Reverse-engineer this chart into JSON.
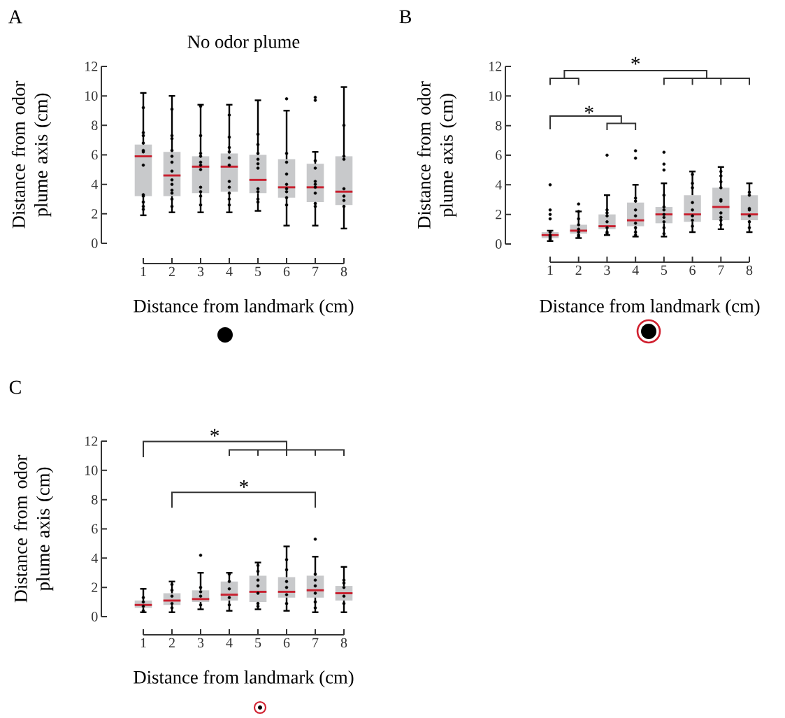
{
  "chart_data": [
    {
      "type": "box",
      "title": "No odor plume",
      "xlabel": "Distance from landmark (cm)",
      "ylabel": "Distance from odor plume axis (cm)",
      "categories": [
        "1",
        "2",
        "3",
        "4",
        "5",
        "6",
        "7",
        "8"
      ],
      "ylim": [
        0,
        12
      ],
      "yticks": [
        0,
        2,
        4,
        6,
        8,
        10,
        12
      ],
      "annotations": [
        "A"
      ],
      "series": [
        {
          "type": "box",
          "color": "#c8c9cb",
          "boxes": [
            {
              "low": 1.9,
              "q1": 3.2,
              "median": 5.9,
              "q3": 6.7,
              "high": 10.2
            },
            {
              "low": 2.1,
              "q1": 3.2,
              "median": 4.6,
              "q3": 6.2,
              "high": 10.0
            },
            {
              "low": 2.1,
              "q1": 3.4,
              "median": 5.2,
              "q3": 5.9,
              "high": 9.4
            },
            {
              "low": 2.1,
              "q1": 3.5,
              "median": 5.2,
              "q3": 6.1,
              "high": 9.4
            },
            {
              "low": 2.2,
              "q1": 3.4,
              "median": 4.3,
              "q3": 6.0,
              "high": 9.7
            },
            {
              "low": 1.2,
              "q1": 3.1,
              "median": 3.8,
              "q3": 5.7,
              "high": 9.0,
              "outliers": [
                9.8
              ]
            },
            {
              "low": 1.2,
              "q1": 2.8,
              "median": 3.8,
              "q3": 5.4,
              "high": 6.2,
              "outliers": [
                9.9,
                9.7
              ]
            },
            {
              "low": 1.0,
              "q1": 2.6,
              "median": 3.5,
              "q3": 5.9,
              "high": 10.6
            }
          ]
        },
        {
          "type": "scatter",
          "color": "#000000",
          "x": [
            "1",
            "1",
            "1",
            "1",
            "1",
            "1",
            "1",
            "1",
            "1",
            "1",
            "1",
            "1",
            "2",
            "2",
            "2",
            "2",
            "2",
            "2",
            "2",
            "2",
            "2",
            "2",
            "2",
            "2",
            "2",
            "3",
            "3",
            "3",
            "3",
            "3",
            "3",
            "3",
            "3",
            "3",
            "3",
            "3",
            "4",
            "4",
            "4",
            "4",
            "4",
            "4",
            "4",
            "4",
            "4",
            "4",
            "4",
            "5",
            "5",
            "5",
            "5",
            "5",
            "5",
            "5",
            "5",
            "5",
            "5",
            "6",
            "6",
            "6",
            "6",
            "6",
            "6",
            "6",
            "6",
            "7",
            "7",
            "7",
            "7",
            "7",
            "7",
            "7",
            "7",
            "8",
            "8",
            "8",
            "8",
            "8",
            "8",
            "8"
          ],
          "values": [
            9.2,
            7.5,
            7.3,
            6.8,
            6.3,
            6.2,
            5.3,
            3.3,
            3.2,
            2.8,
            2.5,
            2.3,
            9.1,
            7.3,
            7.1,
            6.3,
            5.9,
            5.5,
            4.9,
            4.3,
            4.0,
            3.6,
            3.4,
            3.0,
            2.5,
            9.3,
            7.3,
            6.1,
            5.9,
            5.5,
            5.3,
            5.0,
            3.8,
            3.5,
            3.2,
            2.6,
            8.7,
            7.2,
            6.5,
            6.2,
            5.8,
            5.3,
            4.2,
            3.8,
            3.4,
            3.0,
            2.6,
            7.4,
            6.7,
            6.1,
            5.7,
            5.4,
            5.1,
            3.7,
            3.5,
            3.0,
            2.8,
            6.1,
            5.5,
            4.7,
            4.0,
            3.7,
            3.5,
            3.1,
            2.6,
            5.6,
            5.1,
            4.2,
            4.0,
            3.8,
            3.4,
            2.7,
            2.5,
            8.0,
            5.9,
            5.7,
            3.7,
            3.2,
            2.9,
            2.5
          ]
        }
      ]
    },
    {
      "type": "box",
      "xlabel": "Distance from landmark (cm)",
      "ylabel": "Distance from odor plume axis (cm)",
      "categories": [
        "1",
        "2",
        "3",
        "4",
        "5",
        "6",
        "7",
        "8"
      ],
      "ylim": [
        0,
        12
      ],
      "yticks": [
        0,
        2,
        4,
        6,
        8,
        10,
        12
      ],
      "annotations": [
        "B",
        "*",
        "*"
      ],
      "series": [
        {
          "type": "box",
          "color": "#c8c9cb",
          "boxes": [
            {
              "low": 0.2,
              "q1": 0.4,
              "median": 0.6,
              "q3": 0.8,
              "high": 0.9,
              "outliers": [
                4.0,
                2.3,
                2.0,
                1.7
              ]
            },
            {
              "low": 0.4,
              "q1": 0.7,
              "median": 0.9,
              "q3": 1.3,
              "high": 2.2,
              "outliers": [
                2.7
              ]
            },
            {
              "low": 0.6,
              "q1": 1.0,
              "median": 1.2,
              "q3": 2.0,
              "high": 3.3,
              "outliers": [
                6.0
              ]
            },
            {
              "low": 0.5,
              "q1": 1.2,
              "median": 1.6,
              "q3": 2.8,
              "high": 4.0,
              "outliers": [
                6.3,
                5.8
              ]
            },
            {
              "low": 0.5,
              "q1": 1.4,
              "median": 2.0,
              "q3": 2.5,
              "high": 4.1,
              "outliers": [
                6.2,
                5.4,
                5.0
              ]
            },
            {
              "low": 0.8,
              "q1": 1.5,
              "median": 2.0,
              "q3": 3.3,
              "high": 4.9
            },
            {
              "low": 1.0,
              "q1": 1.6,
              "median": 2.5,
              "q3": 3.8,
              "high": 5.2
            },
            {
              "low": 0.8,
              "q1": 1.6,
              "median": 2.0,
              "q3": 3.3,
              "high": 4.1
            }
          ]
        },
        {
          "type": "scatter",
          "color": "#000000",
          "x": [
            "1",
            "1",
            "1",
            "1",
            "1",
            "2",
            "2",
            "2",
            "2",
            "2",
            "2",
            "2",
            "3",
            "3",
            "3",
            "3",
            "3",
            "3",
            "3",
            "4",
            "4",
            "4",
            "4",
            "4",
            "4",
            "4",
            "4",
            "5",
            "5",
            "5",
            "5",
            "5",
            "5",
            "5",
            "5",
            "6",
            "6",
            "6",
            "6",
            "6",
            "6",
            "6",
            "6",
            "7",
            "7",
            "7",
            "7",
            "7",
            "7",
            "7",
            "7",
            "7",
            "7",
            "8",
            "8",
            "8",
            "8",
            "8",
            "8",
            "8"
          ],
          "values": [
            0.8,
            0.6,
            0.5,
            0.4,
            0.3,
            2.2,
            1.7,
            1.3,
            1.0,
            0.8,
            0.6,
            0.5,
            2.3,
            2.1,
            1.9,
            1.5,
            1.1,
            0.8,
            0.7,
            3.1,
            2.9,
            2.3,
            1.9,
            1.4,
            1.1,
            0.8,
            0.6,
            3.3,
            2.5,
            2.3,
            2.0,
            1.8,
            1.5,
            1.1,
            0.7,
            4.7,
            4.1,
            3.8,
            2.8,
            2.3,
            1.9,
            1.6,
            1.2,
            4.9,
            4.6,
            4.2,
            3.8,
            3.0,
            2.9,
            2.1,
            1.8,
            1.6,
            1.3,
            3.5,
            3.3,
            2.4,
            2.3,
            1.9,
            1.5,
            1.1
          ]
        }
      ]
    },
    {
      "type": "box",
      "xlabel": "Distance from landmark (cm)",
      "ylabel": "Distance from odor plume axis (cm)",
      "categories": [
        "1",
        "2",
        "3",
        "4",
        "5",
        "6",
        "7",
        "8"
      ],
      "ylim": [
        0,
        12
      ],
      "yticks": [
        0,
        2,
        4,
        6,
        8,
        10,
        12
      ],
      "annotations": [
        "C",
        "*",
        "*"
      ],
      "series": [
        {
          "type": "box",
          "color": "#c8c9cb",
          "boxes": [
            {
              "low": 0.3,
              "q1": 0.6,
              "median": 0.8,
              "q3": 1.1,
              "high": 1.9
            },
            {
              "low": 0.3,
              "q1": 0.8,
              "median": 1.1,
              "q3": 1.6,
              "high": 2.4
            },
            {
              "low": 0.5,
              "q1": 1.0,
              "median": 1.2,
              "q3": 1.8,
              "high": 3.0,
              "outliers": [
                4.2
              ]
            },
            {
              "low": 0.4,
              "q1": 1.1,
              "median": 1.5,
              "q3": 2.4,
              "high": 3.0
            },
            {
              "low": 0.5,
              "q1": 1.0,
              "median": 1.7,
              "q3": 2.8,
              "high": 3.7
            },
            {
              "low": 0.4,
              "q1": 1.3,
              "median": 1.7,
              "q3": 2.7,
              "high": 4.8
            },
            {
              "low": 0.3,
              "q1": 1.3,
              "median": 1.8,
              "q3": 2.8,
              "high": 4.1,
              "outliers": [
                5.3
              ]
            },
            {
              "low": 0.3,
              "q1": 1.1,
              "median": 1.6,
              "q3": 2.1,
              "high": 3.4
            }
          ]
        },
        {
          "type": "scatter",
          "color": "#000000",
          "x": [
            "1",
            "1",
            "1",
            "1",
            "2",
            "2",
            "2",
            "2",
            "2",
            "3",
            "3",
            "3",
            "3",
            "4",
            "4",
            "4",
            "4",
            "4",
            "5",
            "5",
            "5",
            "5",
            "5",
            "5",
            "5",
            "6",
            "6",
            "6",
            "6",
            "6",
            "6",
            "7",
            "7",
            "7",
            "7",
            "7",
            "7",
            "8",
            "8",
            "8",
            "8",
            "8"
          ],
          "values": [
            1.3,
            1.0,
            0.7,
            0.4,
            2.2,
            1.8,
            1.4,
            0.9,
            0.6,
            2.0,
            1.7,
            1.4,
            0.8,
            2.9,
            2.4,
            1.9,
            1.3,
            0.8,
            3.5,
            3.1,
            2.5,
            2.1,
            1.6,
            0.9,
            0.7,
            3.9,
            3.2,
            2.4,
            2.0,
            1.5,
            0.9,
            2.9,
            2.5,
            2.1,
            1.6,
            1.0,
            0.6,
            2.5,
            2.3,
            2.0,
            1.4,
            0.9
          ]
        }
      ]
    }
  ]
}
